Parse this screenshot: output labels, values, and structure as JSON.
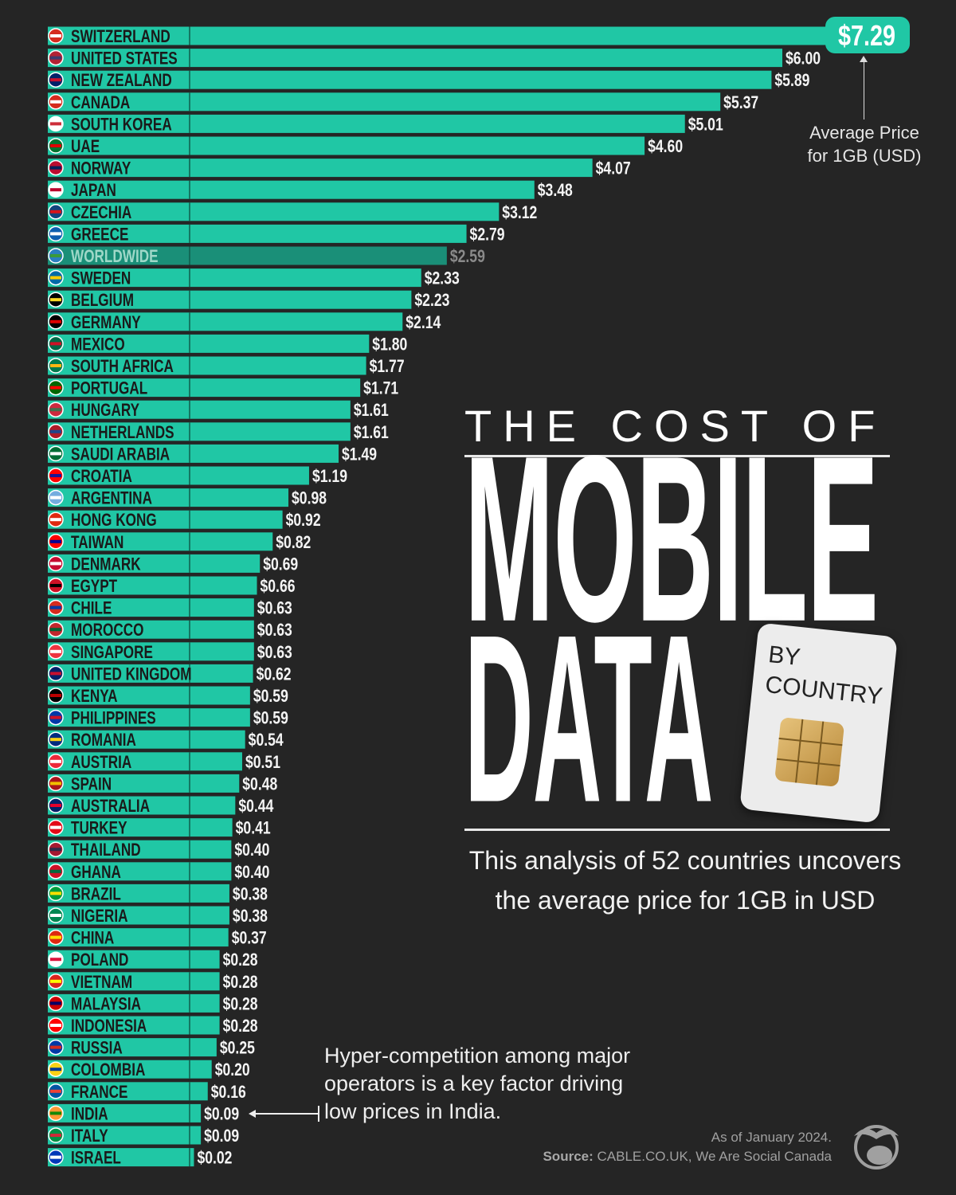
{
  "chart_data": {
    "type": "bar",
    "orientation": "horizontal",
    "title": "THE COST OF MOBILE DATA",
    "subtitle_tag": "BY COUNTRY",
    "value_label": "Average Price for 1GB (USD)",
    "unit_prefix": "$",
    "bar_color": "#20c7a5",
    "highlight_color": "#1a8f78",
    "xlim": [
      0,
      7.29
    ],
    "categories": [
      "SWITZERLAND",
      "UNITED STATES",
      "NEW ZEALAND",
      "CANADA",
      "SOUTH KOREA",
      "UAE",
      "NORWAY",
      "JAPAN",
      "CZECHIA",
      "GREECE",
      "WORLDWIDE",
      "SWEDEN",
      "BELGIUM",
      "GERMANY",
      "MEXICO",
      "SOUTH AFRICA",
      "PORTUGAL",
      "HUNGARY",
      "NETHERLANDS",
      "SAUDI ARABIA",
      "CROATIA",
      "ARGENTINA",
      "HONG KONG",
      "TAIWAN",
      "DENMARK",
      "EGYPT",
      "CHILE",
      "MOROCCO",
      "SINGAPORE",
      "UNITED KINGDOM",
      "KENYA",
      "PHILIPPINES",
      "ROMANIA",
      "AUSTRIA",
      "SPAIN",
      "AUSTRALIA",
      "TURKEY",
      "THAILAND",
      "GHANA",
      "BRAZIL",
      "NIGERIA",
      "CHINA",
      "POLAND",
      "VIETNAM",
      "MALAYSIA",
      "INDONESIA",
      "RUSSIA",
      "COLOMBIA",
      "FRANCE",
      "INDIA",
      "ITALY",
      "ISRAEL"
    ],
    "values": [
      7.29,
      6.0,
      5.89,
      5.37,
      5.01,
      4.6,
      4.07,
      3.48,
      3.12,
      2.79,
      2.59,
      2.33,
      2.23,
      2.14,
      1.8,
      1.77,
      1.71,
      1.61,
      1.61,
      1.49,
      1.19,
      0.98,
      0.92,
      0.82,
      0.69,
      0.66,
      0.63,
      0.63,
      0.63,
      0.62,
      0.59,
      0.59,
      0.54,
      0.51,
      0.48,
      0.44,
      0.41,
      0.4,
      0.4,
      0.38,
      0.38,
      0.37,
      0.28,
      0.28,
      0.28,
      0.28,
      0.25,
      0.2,
      0.16,
      0.09,
      0.09,
      0.02
    ],
    "value_labels": [
      "$7.29",
      "$6.00",
      "$5.89",
      "$5.37",
      "$5.01",
      "$4.60",
      "$4.07",
      "$3.48",
      "$3.12",
      "$2.79",
      "$2.59",
      "$2.33",
      "$2.23",
      "$2.14",
      "$1.80",
      "$1.77",
      "$1.71",
      "$1.61",
      "$1.61",
      "$1.49",
      "$1.19",
      "$0.98",
      "$0.92",
      "$0.82",
      "$0.69",
      "$0.66",
      "$0.63",
      "$0.63",
      "$0.63",
      "$0.62",
      "$0.59",
      "$0.59",
      "$0.54",
      "$0.51",
      "$0.48",
      "$0.44",
      "$0.41",
      "$0.40",
      "$0.40",
      "$0.38",
      "$0.38",
      "$0.37",
      "$0.28",
      "$0.28",
      "$0.28",
      "$0.28",
      "$0.25",
      "$0.20",
      "$0.16",
      "$0.09",
      "$0.09",
      "$0.02"
    ],
    "highlighted": "WORLDWIDE",
    "flag_colors": [
      [
        "#d52b1e",
        "#fff"
      ],
      [
        "#b22234",
        "#3c3b6e"
      ],
      [
        "#012169",
        "#c8102e"
      ],
      [
        "#d52b1e",
        "#fff"
      ],
      [
        "#fff",
        "#cd2e3a"
      ],
      [
        "#00732f",
        "#d00"
      ],
      [
        "#ba0c2f",
        "#00205b"
      ],
      [
        "#fff",
        "#bc002d"
      ],
      [
        "#11457e",
        "#d7141a"
      ],
      [
        "#0d5eaf",
        "#fff"
      ],
      [
        "#2a7fbf",
        "#3a9a3a"
      ],
      [
        "#006aa7",
        "#fecc00"
      ],
      [
        "#000",
        "#fdda24"
      ],
      [
        "#000",
        "#dd0000"
      ],
      [
        "#006847",
        "#ce1126"
      ],
      [
        "#007a4d",
        "#ffb612"
      ],
      [
        "#006600",
        "#ff0000"
      ],
      [
        "#cd2a3e",
        "#436f4d"
      ],
      [
        "#ae1c28",
        "#21468b"
      ],
      [
        "#006c35",
        "#fff"
      ],
      [
        "#ff0000",
        "#171796"
      ],
      [
        "#74acdf",
        "#fff"
      ],
      [
        "#de2910",
        "#fff"
      ],
      [
        "#fe0000",
        "#000095"
      ],
      [
        "#c60c30",
        "#fff"
      ],
      [
        "#ce1126",
        "#000"
      ],
      [
        "#d52b1e",
        "#0039a6"
      ],
      [
        "#c1272d",
        "#006233"
      ],
      [
        "#ef3340",
        "#fff"
      ],
      [
        "#012169",
        "#c8102e"
      ],
      [
        "#000",
        "#bb0000"
      ],
      [
        "#0038a8",
        "#ce1126"
      ],
      [
        "#002b7f",
        "#fcd116"
      ],
      [
        "#ed2939",
        "#fff"
      ],
      [
        "#aa151b",
        "#f1bf00"
      ],
      [
        "#012169",
        "#e4002b"
      ],
      [
        "#e30a17",
        "#fff"
      ],
      [
        "#a51931",
        "#2d2a4a"
      ],
      [
        "#ce1126",
        "#006b3f"
      ],
      [
        "#009c3b",
        "#ffdf00"
      ],
      [
        "#008751",
        "#fff"
      ],
      [
        "#de2910",
        "#ffde00"
      ],
      [
        "#fff",
        "#dc143c"
      ],
      [
        "#da251d",
        "#ffff00"
      ],
      [
        "#cc0001",
        "#010066"
      ],
      [
        "#ff0000",
        "#fff"
      ],
      [
        "#0039a6",
        "#d52b1e"
      ],
      [
        "#fcd116",
        "#003893"
      ],
      [
        "#0055a4",
        "#ef4135"
      ],
      [
        "#ff9933",
        "#138808"
      ],
      [
        "#009246",
        "#ce2b37"
      ],
      [
        "#0038b8",
        "#fff"
      ]
    ]
  },
  "header": {
    "title_line1": "THE COST OF",
    "title_line2": "MOBILE",
    "title_line3": "DATA",
    "sim_line1": "BY",
    "sim_line2": "COUNTRY"
  },
  "subtitle": {
    "line1": "This analysis of 52 countries uncovers",
    "line2": "the average price for 1GB in USD"
  },
  "legend": {
    "line1": "Average Price",
    "line2": "for 1GB (USD)"
  },
  "annotation": {
    "line1": "Hyper-competition among major",
    "line2": "operators is a key factor driving",
    "line3": "low prices in India."
  },
  "footer": {
    "date": "As of January 2024.",
    "source_label": "Source:",
    "source": "CABLE.CO.UK, We Are Social Canada"
  }
}
